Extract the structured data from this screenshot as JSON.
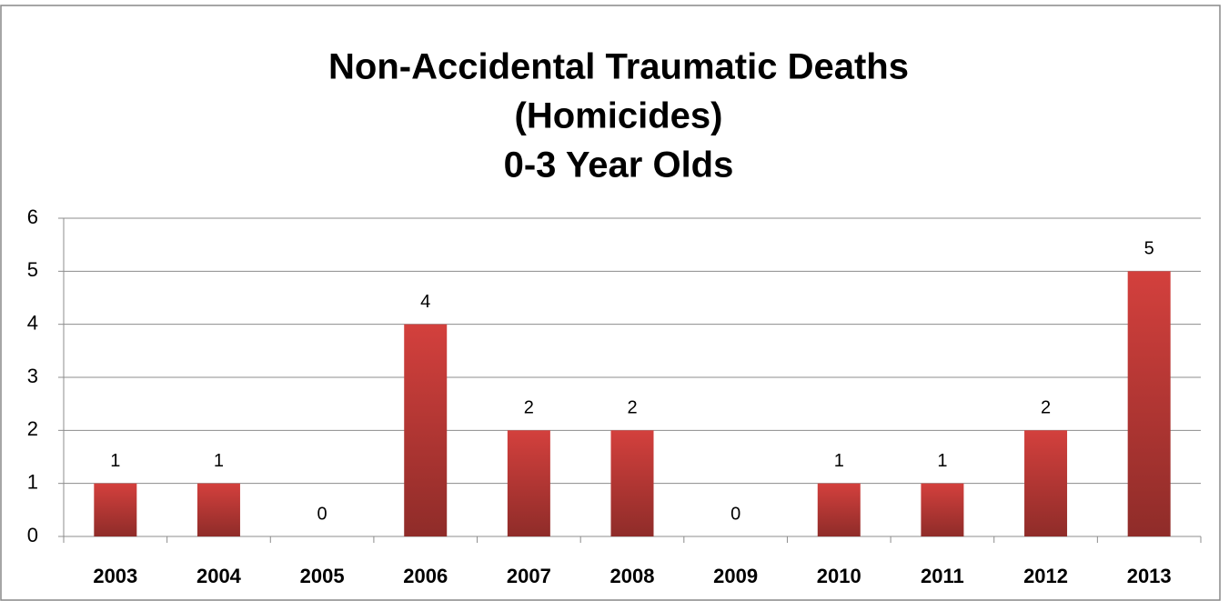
{
  "chart_data": {
    "type": "bar",
    "title": [
      "Non-Accidental Traumatic Deaths",
      "(Homicides)",
      "0-3 Year Olds"
    ],
    "categories": [
      "2003",
      "2004",
      "2005",
      "2006",
      "2007",
      "2008",
      "2009",
      "2010",
      "2011",
      "2012",
      "2013"
    ],
    "values": [
      1,
      1,
      0,
      4,
      2,
      2,
      0,
      1,
      1,
      2,
      5
    ],
    "color": "#d3403d",
    "ylim": [
      0,
      6
    ],
    "yticks": [
      0,
      1,
      2,
      3,
      4,
      5,
      6
    ],
    "grid": true
  }
}
